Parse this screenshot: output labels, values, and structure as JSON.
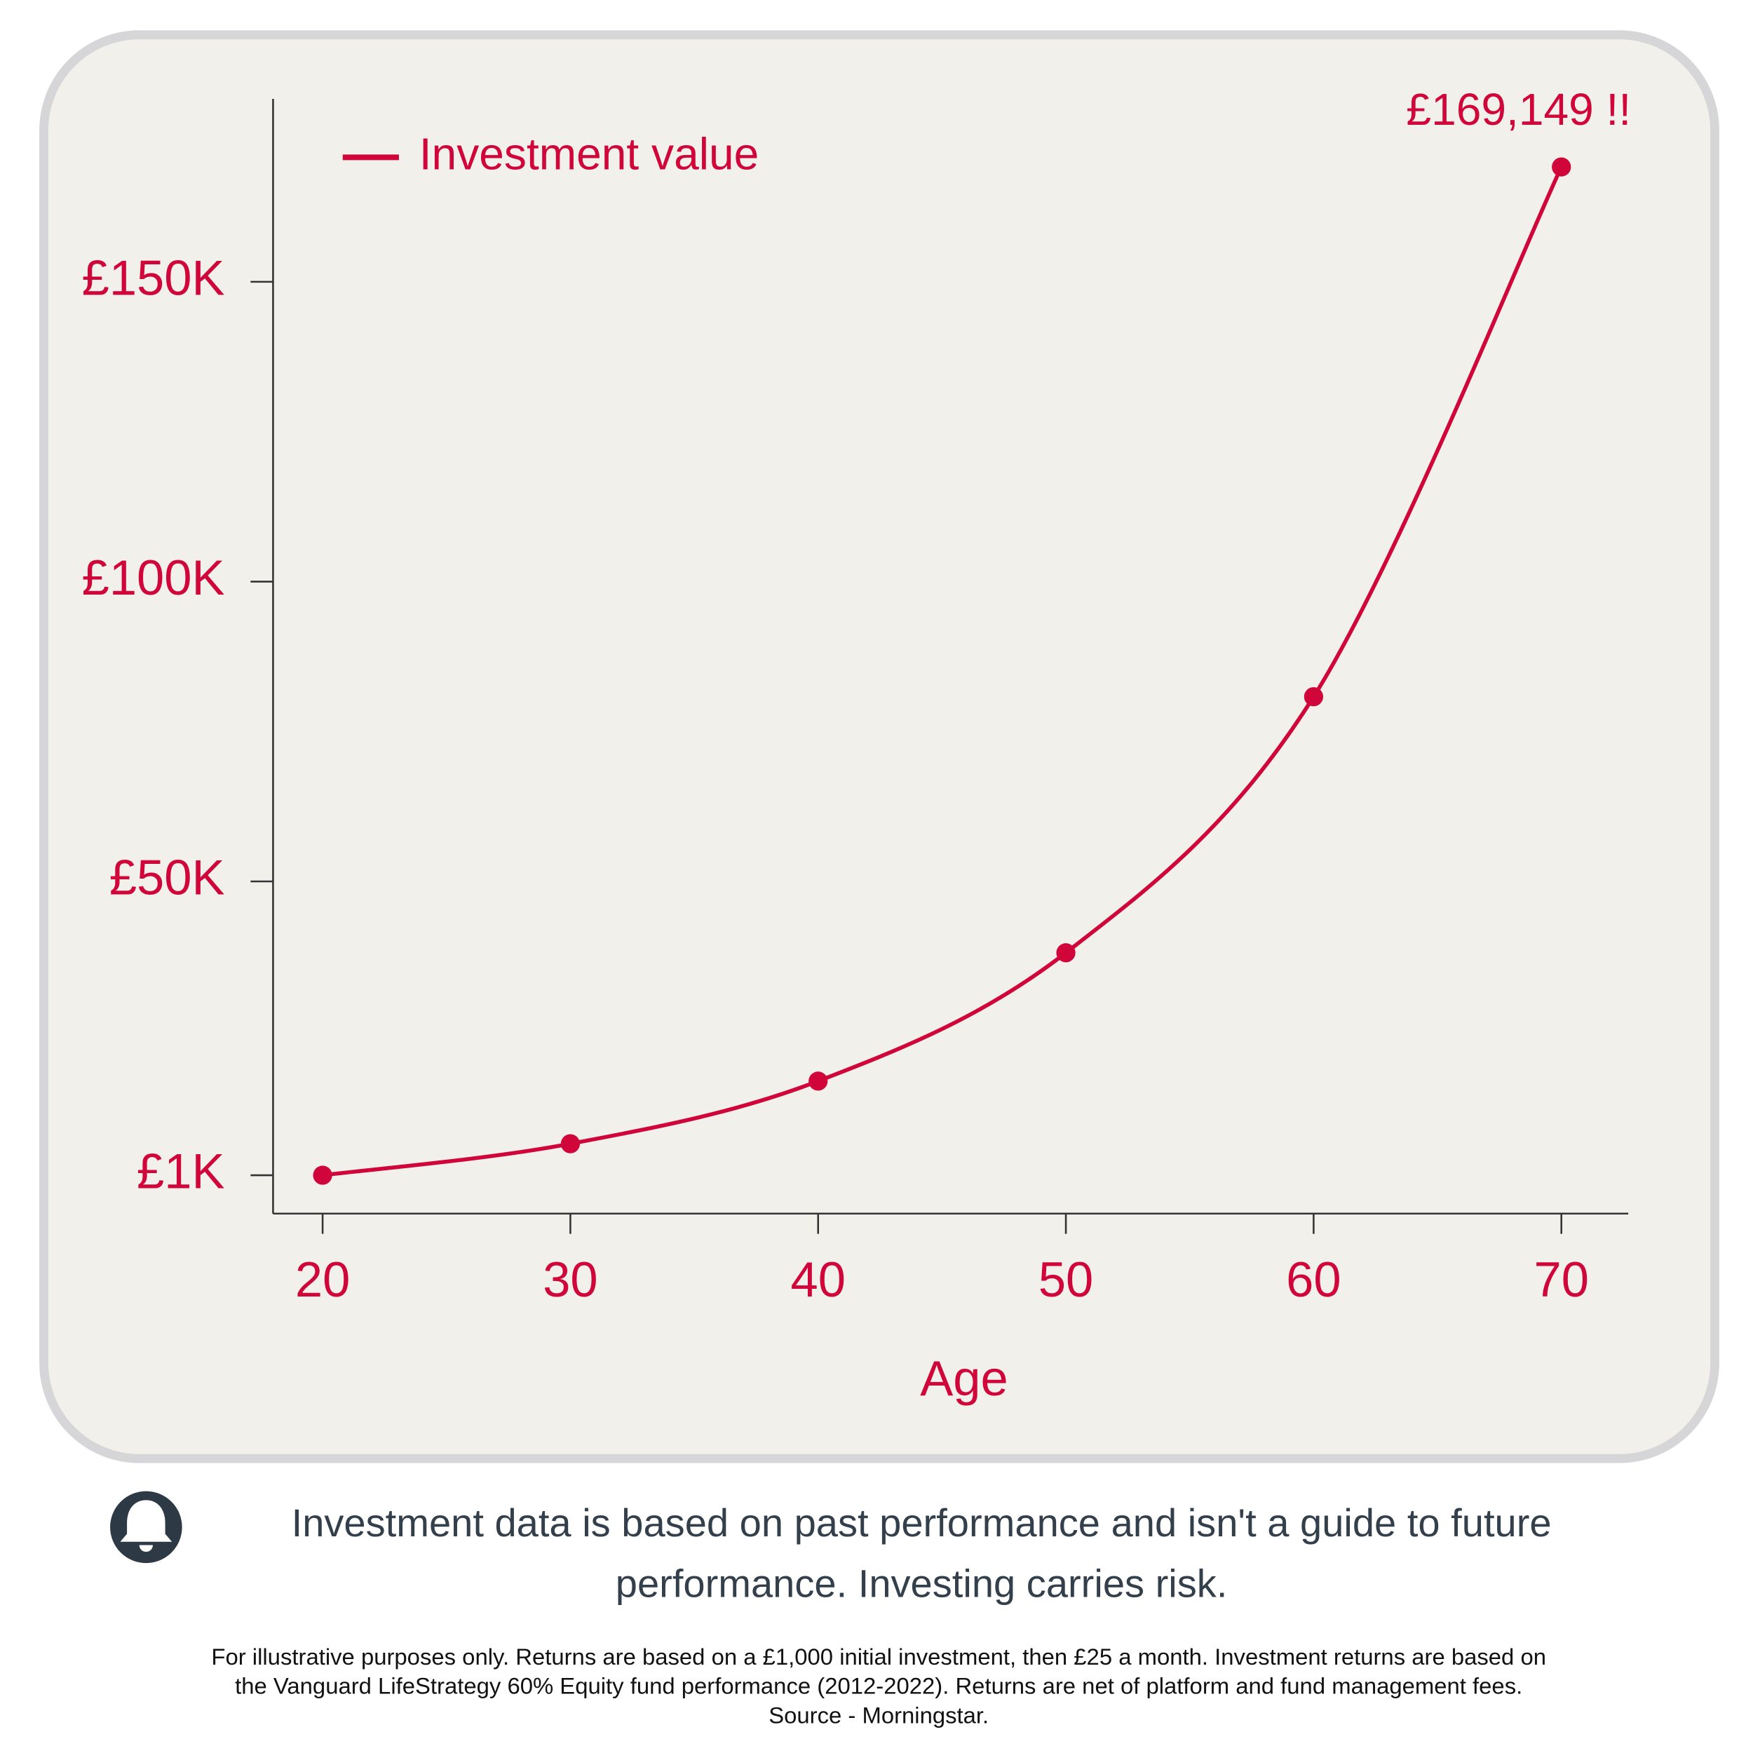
{
  "chart_data": {
    "type": "line",
    "x_label": "Age",
    "x": [
      20,
      30,
      40,
      50,
      60,
      70
    ],
    "series": [
      {
        "name": "Investment value",
        "color": "#d0063a",
        "values": [
          1000,
          6250,
          16700,
          38100,
          80800,
          169149
        ],
        "value_labels": [
          null,
          null,
          null,
          null,
          null,
          "£169,149 !!"
        ]
      }
    ],
    "xlim": [
      18,
      72.7
    ],
    "xticks": [
      20,
      30,
      40,
      50,
      60,
      70
    ],
    "ylim": [
      -5400,
      180500
    ],
    "yticks": [
      {
        "value": 1000,
        "label": "£1K"
      },
      {
        "value": 50000,
        "label": "£50K"
      },
      {
        "value": 100000,
        "label": "£100K"
      },
      {
        "value": 150000,
        "label": "£150K"
      }
    ],
    "legend": "top-left",
    "grid": false
  },
  "notice": {
    "lines": [
      "Investment data is based on past performance and isn't a guide to future",
      "performance. Investing carries risk."
    ]
  },
  "footnote": {
    "lines": [
      "For illustrative purposes only. Returns are based on a £1,000 initial investment, then £25 a month. Investment returns are based on",
      "the Vanguard LifeStrategy 60% Equity fund performance (2012-2022). Returns are net of platform and fund management fees.",
      "Source - Morningstar."
    ]
  }
}
